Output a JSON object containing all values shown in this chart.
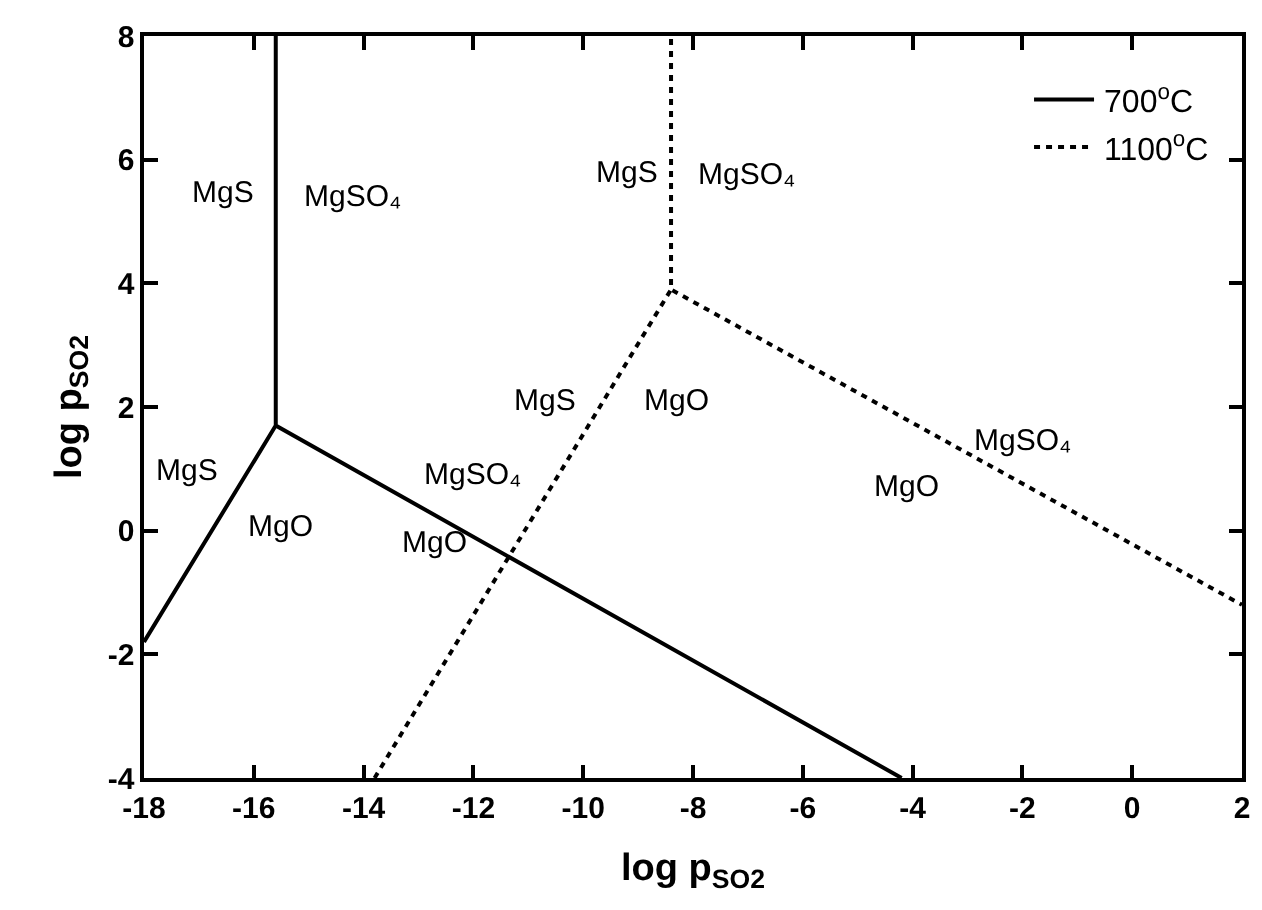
{
  "chart_data": {
    "type": "line",
    "xlabel": "log p$_{SO2}$",
    "ylabel": "log p$_{SO2}$",
    "xlim": [
      -18,
      2
    ],
    "ylim": [
      -4,
      8
    ],
    "xticks": [
      -18,
      -16,
      -14,
      -12,
      -10,
      -8,
      -6,
      -4,
      -2,
      0,
      2
    ],
    "yticks": [
      -4,
      -2,
      0,
      2,
      4,
      6,
      8
    ],
    "legend": "top right",
    "marker": "none",
    "series": [
      {
        "name": "700$^{o}$C",
        "color": "#000000",
        "line_style": "solid",
        "x": [
          -18,
          -15.6,
          -15.6,
          -15.6,
          -4.2
        ],
        "values": [
          -1.8,
          1.7,
          8,
          1.7,
          -4
        ]
      },
      {
        "name": "1100$^{o}$C",
        "color": "#000000",
        "line_style": "dotted",
        "x": [
          -13.8,
          -8.4,
          -8.4,
          -8.4,
          2
        ],
        "values": [
          -4,
          3.9,
          8,
          3.9,
          -1.2
        ]
      }
    ],
    "annotations": [
      "MgS",
      "MgSO₄",
      "MgS",
      "MgO",
      "MgS",
      "MgSO₄",
      "MgO",
      "MgS",
      "MgSO₄",
      "MgO",
      "MgSO₄",
      "MgO"
    ]
  }
}
